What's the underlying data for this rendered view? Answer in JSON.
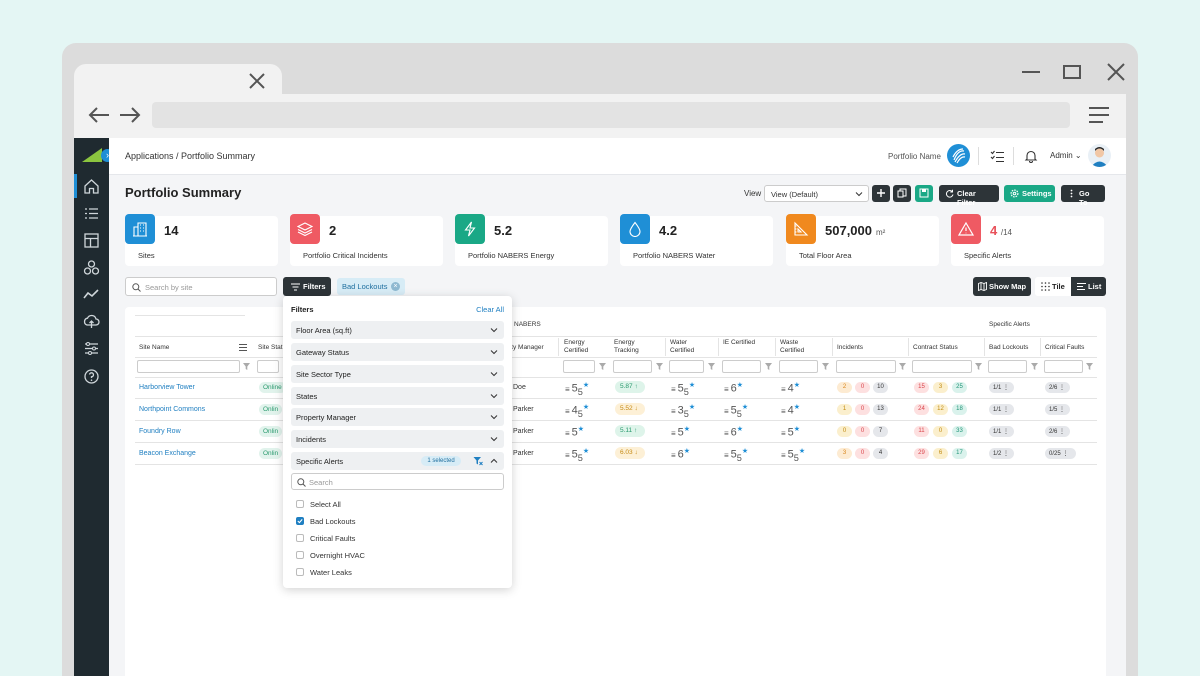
{
  "app": {
    "breadcrumb": "Applications / Portfolio Summary",
    "portfolio_label": "Portfolio Name",
    "user_name": "Admin",
    "page_title": "Portfolio Summary"
  },
  "toolbar": {
    "view_label": "View",
    "view_value": "View (Default)",
    "clear_filter": "Clear Filter",
    "settings": "Settings",
    "goto": "Go To"
  },
  "stats": [
    {
      "value": "14",
      "label": "Sites",
      "color": "#1f8fd6"
    },
    {
      "value": "2",
      "label": "Portfolio Critical Incidents",
      "color": "#ef5a63"
    },
    {
      "value": "5.2",
      "label": "Portfolio NABERS Energy",
      "color": "#1aa886"
    },
    {
      "value": "4.2",
      "label": "Portfolio NABERS Water",
      "color": "#1f8fd6"
    },
    {
      "value": "507,000",
      "unit": "m²",
      "label": "Total Floor Area",
      "color": "#f0891e"
    },
    {
      "value": "4",
      "total": "/14",
      "label": "Specific Alerts",
      "color": "#ef5a63"
    }
  ],
  "filters_bar": {
    "search_placeholder": "Search by site",
    "filters_label": "Filters",
    "active_chip": "Bad Lockouts",
    "show_map": "Show Map",
    "tile": "Tile",
    "list": "List"
  },
  "table": {
    "group_nabers": "NABERS",
    "group_alerts": "Specific Alerts",
    "headers": {
      "site_name": "Site Name",
      "site_status": "Site Stat",
      "property_manager": "rty Manager",
      "energy_certified": "Energy Certified",
      "energy_tracking": "Energy Tracking",
      "water_certified": "Water Certified",
      "ie_certified": "IE Certified",
      "waste_certified": "Waste Certified",
      "incidents": "Incidents",
      "contract_status": "Contract Status",
      "bad_lockouts": "Bad Lockouts",
      "critical_faults": "Critical Faults"
    },
    "rows": [
      {
        "site": "Harborview Tower",
        "status": "Online",
        "pm": "Doe",
        "energy": "5",
        "energy_sub": "5",
        "tracking": "5.87 ↑",
        "water": "5",
        "water_sub": "5",
        "ie": "6",
        "waste": "4",
        "inc": [
          "2",
          "0",
          "10"
        ],
        "contract": [
          "15",
          "3",
          "25"
        ],
        "lockouts": "1/1 ⋮",
        "faults": "2/6 ⋮"
      },
      {
        "site": "Northpoint Commons",
        "status": "Onlin",
        "pm": "Parker",
        "energy": "4",
        "energy_sub": "5",
        "tracking": "5.52 ↓",
        "water": "3",
        "water_sub": "5",
        "ie": "5",
        "ie_sub": "5",
        "waste": "4",
        "inc": [
          "1",
          "0",
          "13"
        ],
        "contract": [
          "24",
          "12",
          "18"
        ],
        "lockouts": "1/1 ⋮",
        "faults": "1/5 ⋮"
      },
      {
        "site": "Foundry Row",
        "status": "Onlin",
        "pm": "Parker",
        "energy": "5",
        "tracking": "5.11 ↑",
        "water": "5",
        "ie": "6",
        "waste": "5",
        "inc": [
          "0",
          "0",
          "7"
        ],
        "contract": [
          "11",
          "0",
          "33"
        ],
        "lockouts": "1/1 ⋮",
        "faults": "2/6 ⋮"
      },
      {
        "site": "Beacon Exchange",
        "status": "Onlin",
        "pm": "Parker",
        "energy": "5",
        "energy_sub": "5",
        "tracking": "6.03 ↓",
        "water": "6",
        "ie": "5",
        "ie_sub": "5",
        "waste": "5",
        "waste_sub": "5",
        "inc": [
          "3",
          "0",
          "4"
        ],
        "contract": [
          "29",
          "6",
          "17"
        ],
        "lockouts": "1/2 ⋮",
        "faults": "0/25 ⋮"
      }
    ]
  },
  "dropdown": {
    "title": "Filters",
    "clear_all": "Clear All",
    "sections": [
      "Floor Area (sq.ft)",
      "Gateway Status",
      "Site Sector Type",
      "States",
      "Property Manager",
      "Incidents",
      "Specific Alerts"
    ],
    "selected_pill": "1 selected",
    "search_placeholder": "Search",
    "options": [
      {
        "label": "Select All",
        "checked": false
      },
      {
        "label": "Bad Lockouts",
        "checked": true
      },
      {
        "label": "Critical Faults",
        "checked": false
      },
      {
        "label": "Overnight HVAC",
        "checked": false
      },
      {
        "label": "Water Leaks",
        "checked": false
      }
    ]
  }
}
